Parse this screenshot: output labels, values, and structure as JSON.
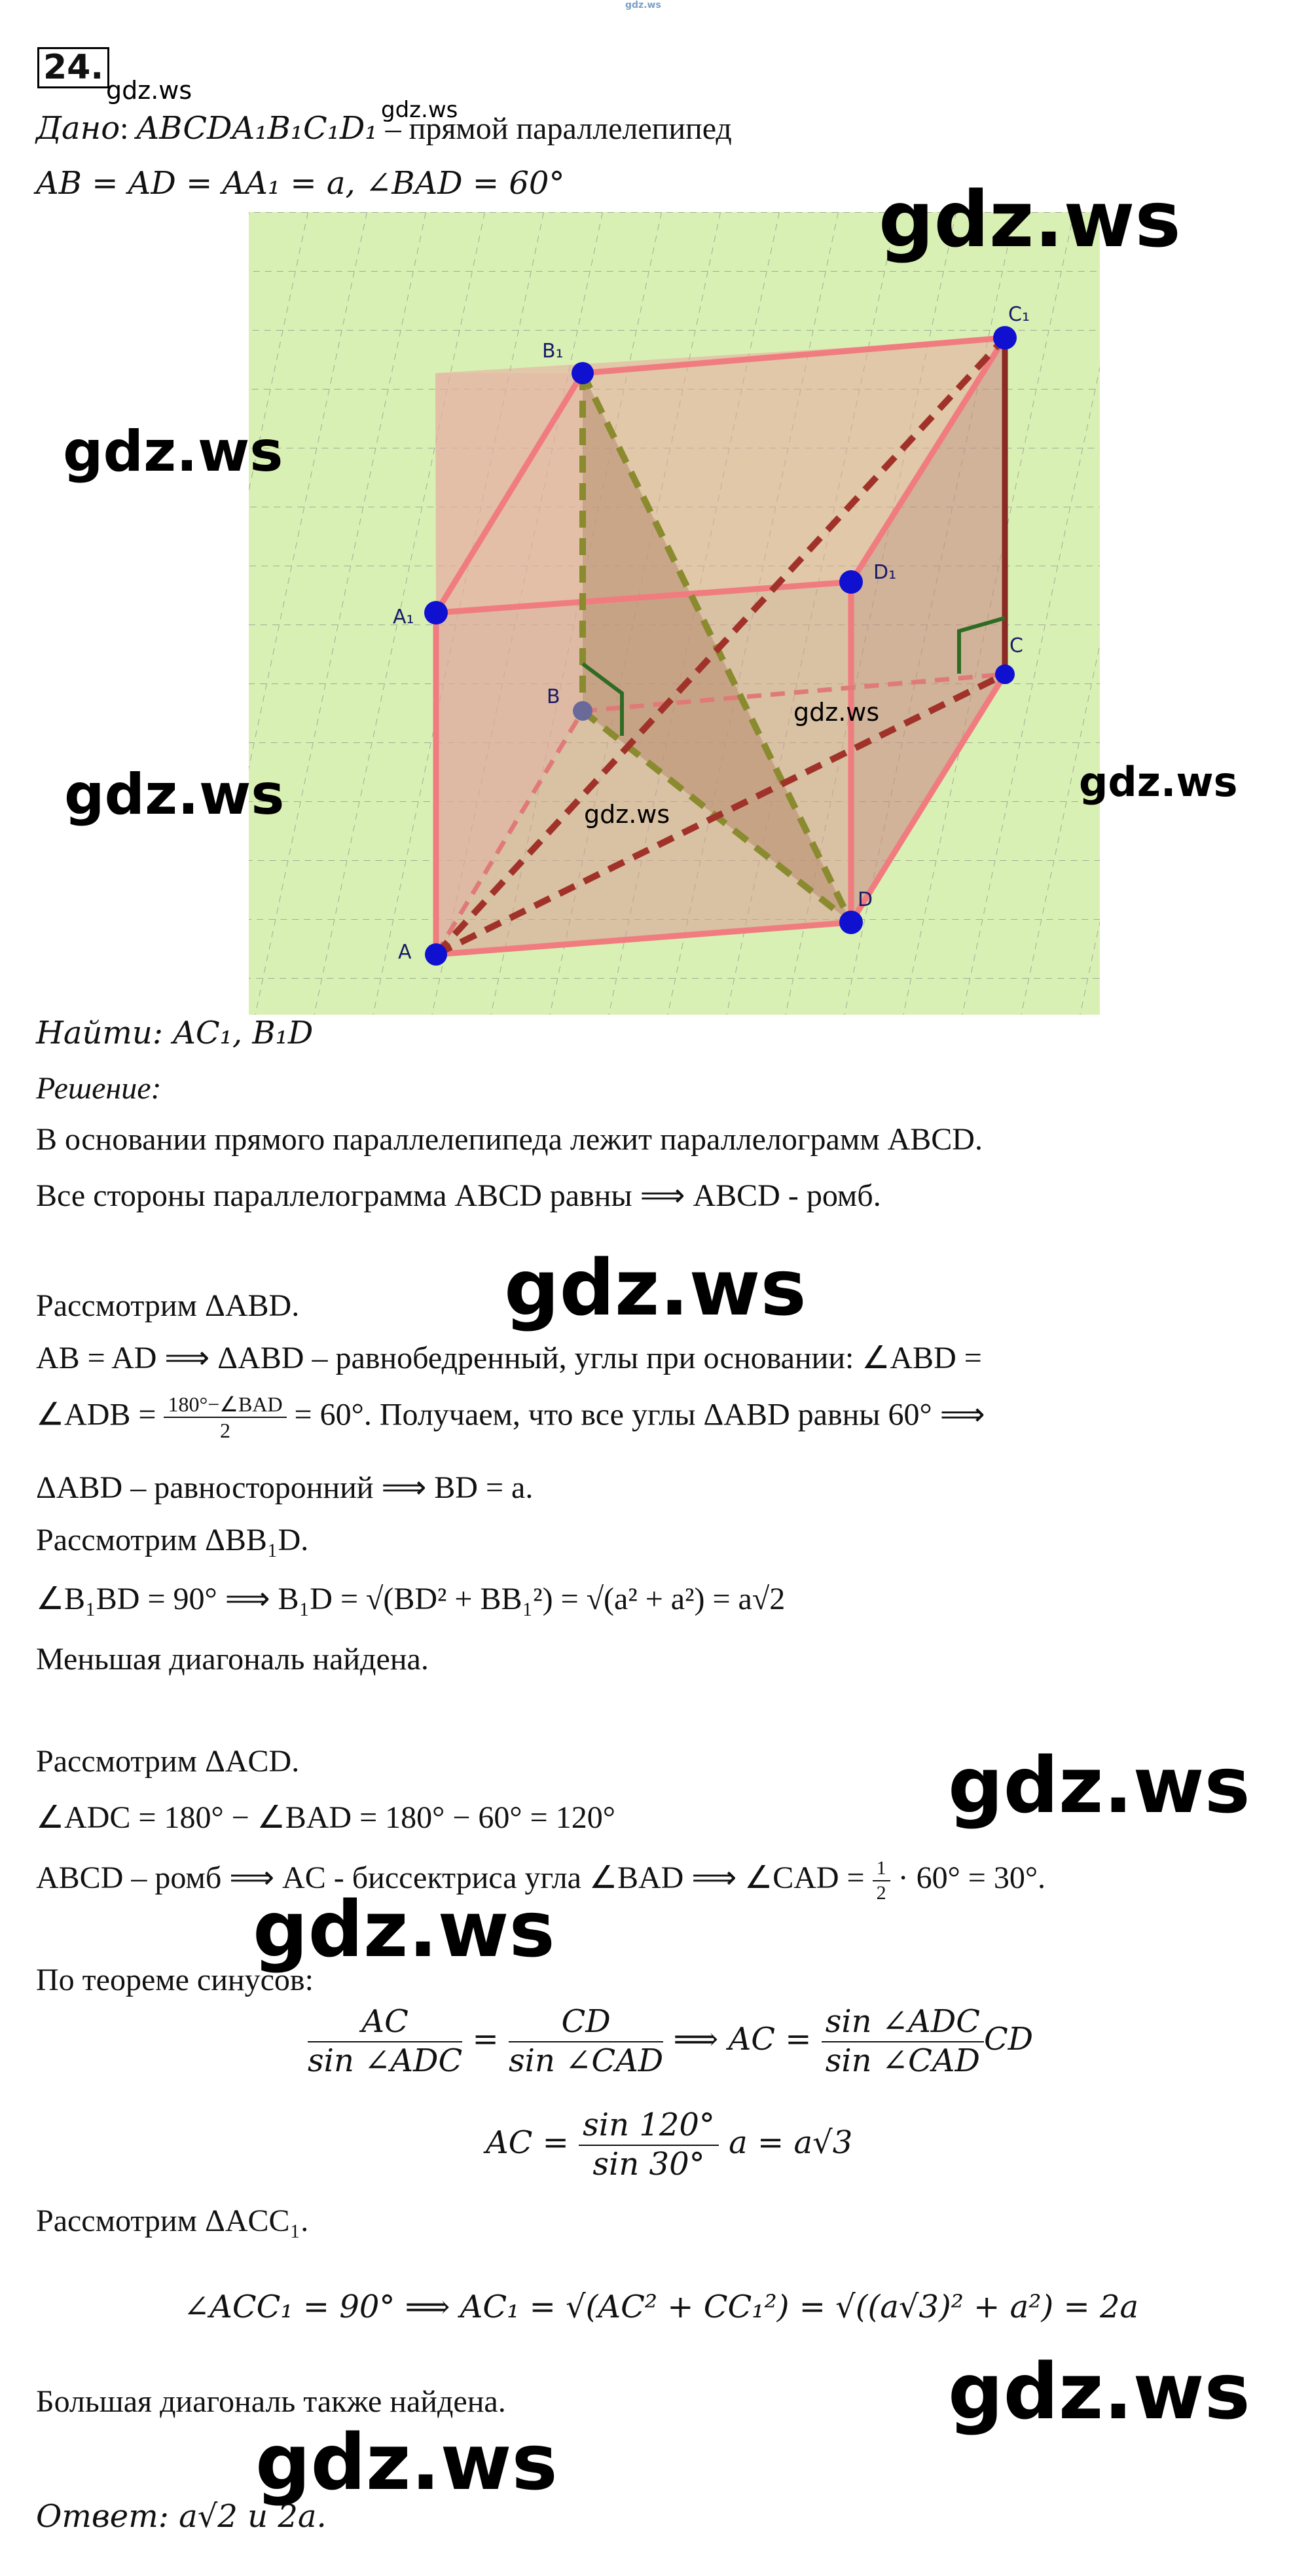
{
  "watermarks": {
    "top_tiny": "gdz.ws",
    "near_number": "gdz.ws",
    "near_given": "gdz.ws",
    "fig_top_right": "gdz.ws",
    "fig_left_1": "gdz.ws",
    "fig_left_2": "gdz.ws",
    "fig_right": "gdz.ws",
    "fig_center_1": "gdz.ws",
    "fig_center_2": "gdz.ws",
    "mid_1": "gdz.ws",
    "mid_2": "gdz.ws",
    "mid_3": "gdz.ws",
    "bottom_right": "gdz.ws",
    "bottom_left": "gdz.ws"
  },
  "problem_number": "24.",
  "given": {
    "label": "Дано",
    "line1_math": "ABCDA₁B₁C₁D₁",
    "line1_text": " – прямой параллелепипед",
    "line2_math": "AB = AD = AA₁ = a,  ∠BAD = 60°"
  },
  "figure": {
    "vertices": [
      "A",
      "B",
      "C",
      "D",
      "A₁",
      "B₁",
      "C₁",
      "D₁"
    ],
    "background": "#d9f0b4"
  },
  "find": {
    "label": "Найти",
    "math": ": AC₁, B₁D"
  },
  "solution_label": "Решение:",
  "lines": {
    "l1": "В основании прямого параллелепипеда лежит параллелограмм ABCD.",
    "l2": "Все стороны параллелограмма ABCD равны ⟹ ABCD - ромб.",
    "l3": "Рассмотрим ΔABD.",
    "l4": " AB = AD ⟹ ΔABD – равнобедренный, углы при основании: ∠ABD =",
    "l5_a": "∠ADB = ",
    "l5_num": "180°−∠BAD",
    "l5_den": "2",
    "l5_b": " = 60°. Получаем, что все углы ΔABD равны 60° ⟹",
    "l6": "ΔABD – равносторонний ⟹ BD = a.",
    "l7": "Рассмотрим ΔBB₁D.",
    "l8": " ∠B₁BD = 90°  ⟹ B₁D = √(BD² + BB₁²) = √(a² + a²) = a√2",
    "l9": "Меньшая диагональ найдена.",
    "l10": "Рассмотрим ΔACD.",
    "l11": "∠ADC = 180° − ∠BAD = 180° − 60° = 120°",
    "l12_a": "ABCD – ромб ⟹ AC - биссектриса угла ∠BAD  ⟹ ∠CAD = ",
    "l12_num": "1",
    "l12_den": "2",
    "l12_b": " · 60° = 30°.",
    "l13": " По теореме синусов:",
    "f1_n1": "AC",
    "f1_d1": "sin ∠ADC",
    "f1_mid": " = ",
    "f1_n2": "CD",
    "f1_d2": "sin ∠CAD",
    "f1_arrow": " ⟹ AC = ",
    "f1_n3": "sin ∠ADC",
    "f1_d3": "sin ∠CAD",
    "f1_end": "CD",
    "f2_a": "AC = ",
    "f2_num": "sin 120°",
    "f2_den": "sin 30°",
    "f2_b": " a = a√3",
    "l14": "Рассмотрим ΔACC₁.",
    "l15": "∠ACC₁ = 90°  ⟹ AC₁ = √(AC² + CC₁²) = √((a√3)² + a²) = 2a",
    "l16": "Большая диагональ также найдена.",
    "answer_label": "Ответ",
    "answer_math": ": a√2 и 2a."
  }
}
